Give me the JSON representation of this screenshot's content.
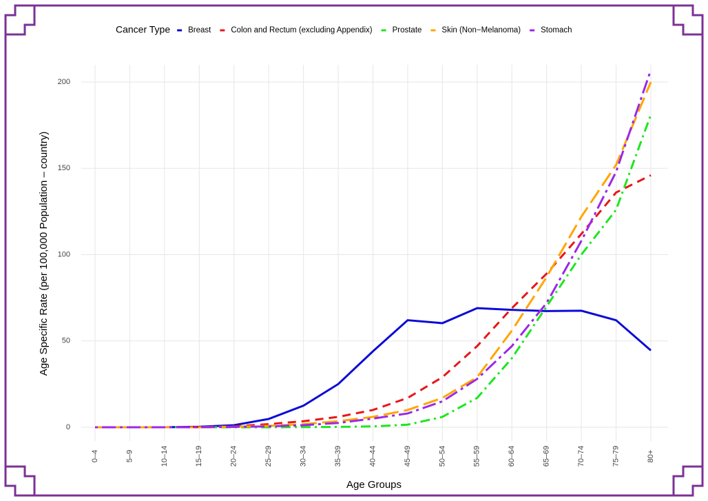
{
  "chart_data": {
    "type": "line",
    "x_label": "Age Groups",
    "y_label": "Age Specific Rate (per 100,000 Population – country)",
    "legend_title": "Cancer Type",
    "legend": "top",
    "grid": true,
    "categories": [
      "0–4",
      "5–9",
      "10–14",
      "15–19",
      "20–24",
      "25–29",
      "30–34",
      "35–39",
      "40–44",
      "45–49",
      "50–54",
      "55–59",
      "60–64",
      "65–69",
      "70–74",
      "75–79",
      "80+"
    ],
    "ylim": [
      -8,
      210
    ],
    "yticks": [
      0,
      50,
      100,
      150,
      200
    ],
    "series": [
      {
        "name": "Breast",
        "color": "#0b0bd6",
        "dash": "solid",
        "values": [
          0,
          0,
          0,
          0.3,
          1.2,
          4.8,
          12.5,
          25,
          44,
          62,
          60.3,
          69,
          68,
          67.3,
          67.5,
          62,
          44.5
        ]
      },
      {
        "name": "Colon and Rectum (excluding Appendix)",
        "color": "#e8161a",
        "dash": "dashed",
        "values": [
          0,
          0,
          0,
          0.1,
          0.5,
          1.8,
          3.5,
          6,
          10,
          17,
          29,
          47,
          69,
          89,
          112,
          136,
          146
        ]
      },
      {
        "name": "Prostate",
        "color": "#1ee61e",
        "dash": "dotdash",
        "values": [
          0,
          0,
          0,
          0,
          0,
          0,
          0.1,
          0.2,
          0.5,
          1.5,
          6,
          17,
          40,
          70,
          100,
          126,
          181
        ]
      },
      {
        "name": "Skin (Non−Melanoma)",
        "color": "#ffa500",
        "dash": "longdash",
        "values": [
          0,
          0,
          0,
          0,
          0.3,
          0.8,
          1.8,
          3.5,
          6,
          10,
          17,
          29,
          56,
          87,
          122,
          152,
          200
        ]
      },
      {
        "name": "Stomach",
        "color": "#9b28e8",
        "dash": "twodash",
        "values": [
          0,
          0,
          0,
          0,
          0.2,
          0.5,
          1.2,
          2.5,
          5,
          8,
          15,
          28,
          47,
          72,
          108,
          148,
          207
        ]
      }
    ]
  }
}
